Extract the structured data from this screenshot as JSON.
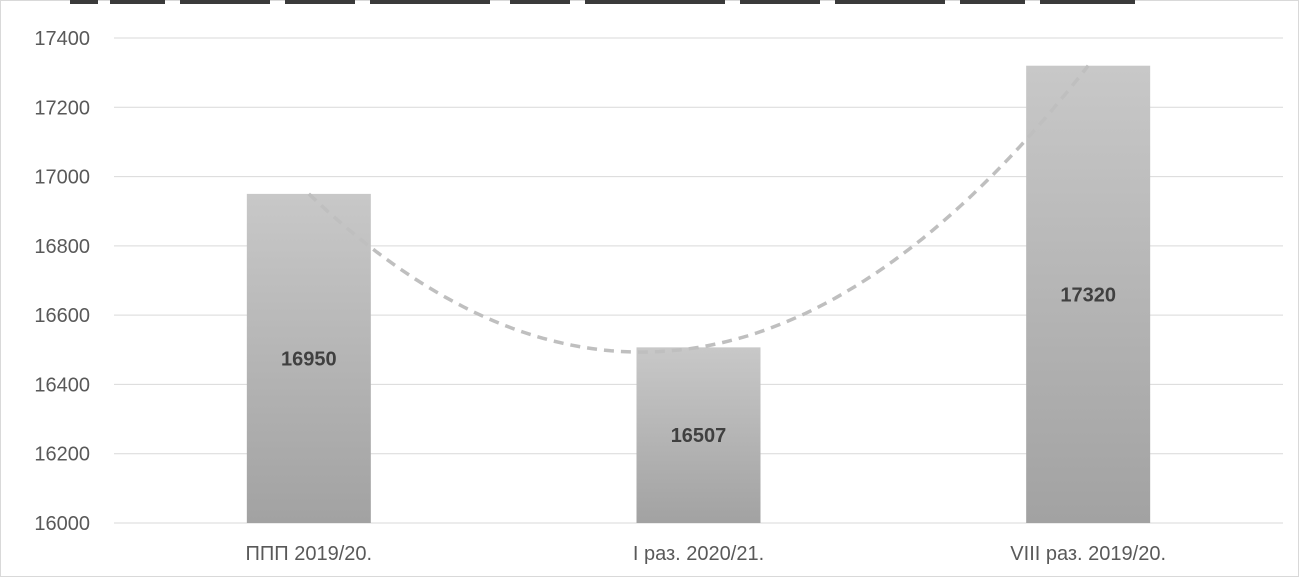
{
  "chart_data": {
    "type": "bar",
    "categories": [
      "ППП 2019/20.",
      "I раз. 2020/21.",
      "VIII раз. 2019/20."
    ],
    "values": [
      16950,
      16507,
      17320
    ],
    "data_labels": [
      "16950",
      "16507",
      "17320"
    ],
    "ylim": [
      16000,
      17400
    ],
    "yticks": [
      16000,
      16200,
      16400,
      16600,
      16800,
      17000,
      17200,
      17400
    ],
    "grid": true,
    "trendline": {
      "type": "polynomial",
      "order": 2,
      "style": "dashed"
    },
    "colors": {
      "bar_top": "#c8c8c8",
      "bar_bottom": "#a2a2a2",
      "gridline": "#d9d9d9",
      "trend": "#bfbfbf",
      "axis_text": "#595959",
      "label_text": "#404040"
    }
  }
}
